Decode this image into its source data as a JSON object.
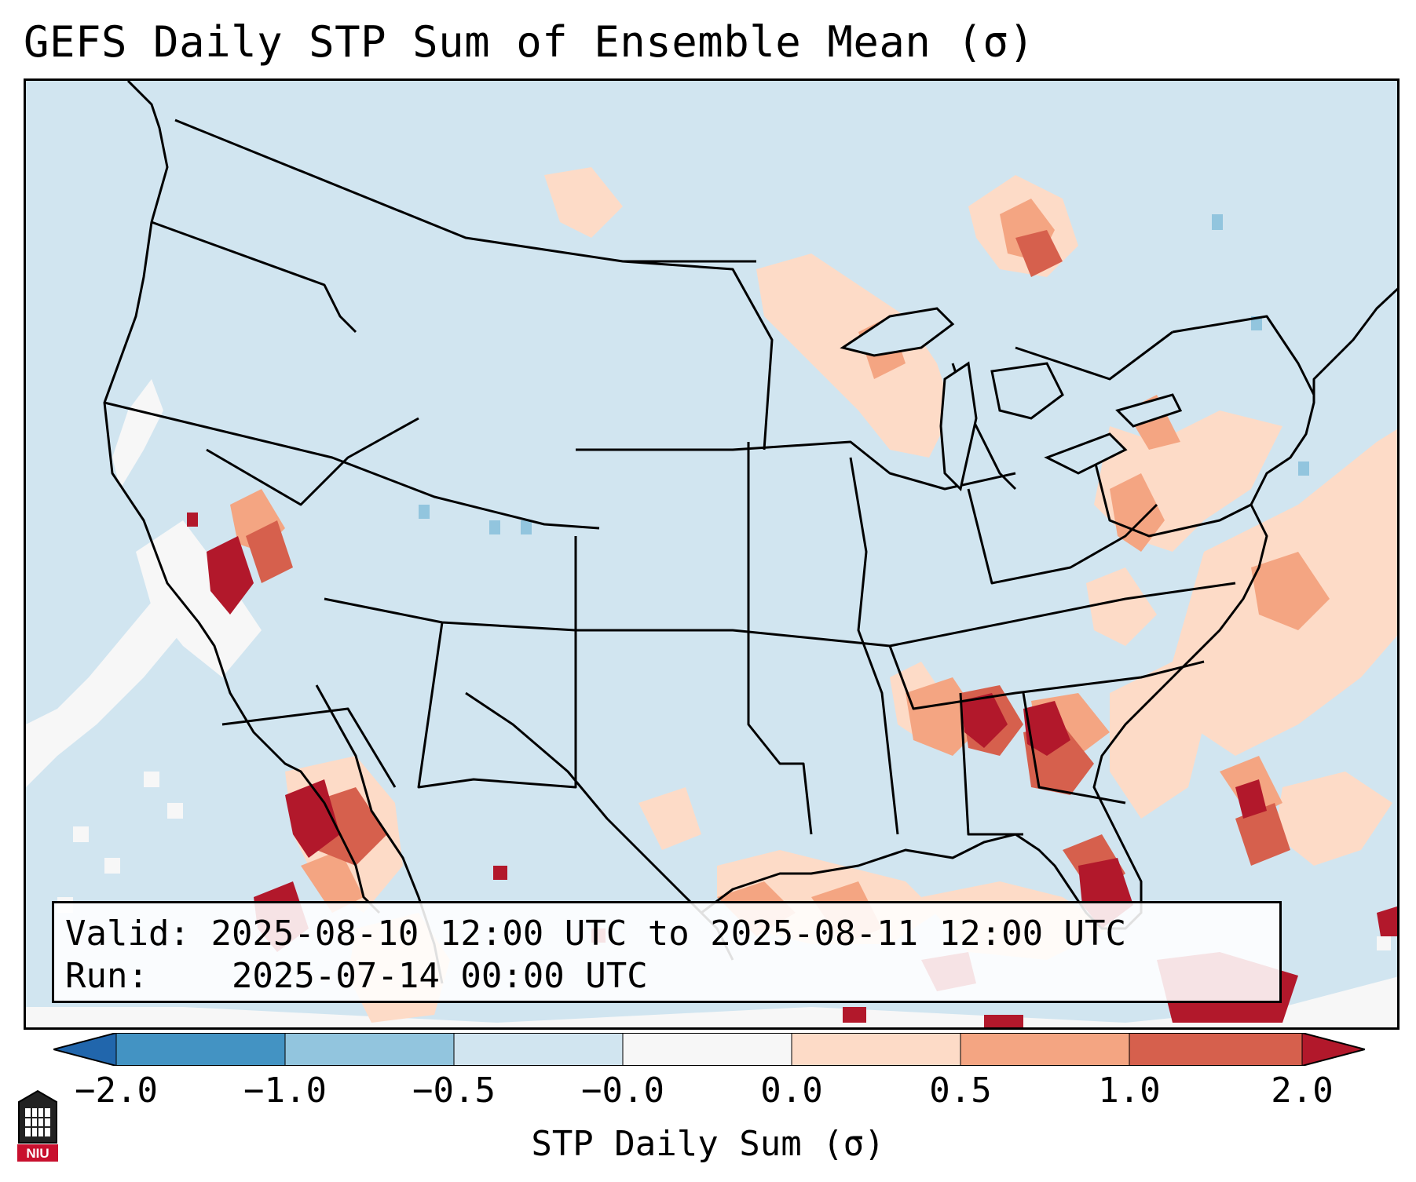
{
  "title": "GEFS Daily STP Sum of Ensemble Mean (σ)",
  "info": {
    "valid_label": "Valid:",
    "valid_value": "2025-08-10 12:00 UTC to 2025-08-11 12:00 UTC",
    "run_label": "Run:",
    "run_value": "2025-07-14 00:00 UTC"
  },
  "colorbar": {
    "label": "STP Daily Sum (σ)",
    "ticks": [
      "−2.0",
      "−1.0",
      "−0.5",
      "−0.0",
      "0.0",
      "0.5",
      "1.0",
      "2.0"
    ],
    "bins": [
      {
        "range": "< -2.0",
        "color": "#2166ac"
      },
      {
        "range": "-2.0 to -1.0",
        "color": "#4393c3"
      },
      {
        "range": "-1.0 to -0.5",
        "color": "#92c5de"
      },
      {
        "range": "-0.5 to -0.0",
        "color": "#d1e5f0"
      },
      {
        "range": "-0.0 to 0.0",
        "color": "#f7f7f7"
      },
      {
        "range": "0.0 to 0.5",
        "color": "#fddbc7"
      },
      {
        "range": "0.5 to 1.0",
        "color": "#f4a582"
      },
      {
        "range": "1.0 to 2.0",
        "color": "#d6604d"
      },
      {
        "range": "> 2.0",
        "color": "#b2182b"
      }
    ]
  },
  "map": {
    "region": "Continental United States",
    "background_color": "#d1e5f0",
    "anomaly_areas": [
      {
        "name": "Southeast US (Alabama / Georgia)",
        "level": "> 2.0"
      },
      {
        "name": "Gulf of Mexico / Florida",
        "level": "1.0 to 2.0"
      },
      {
        "name": "Great Lakes / Upper Midwest",
        "level": "0.5 to 1.0"
      },
      {
        "name": "Mid-Atlantic / Virginia",
        "level": "0.5 to 1.0"
      },
      {
        "name": "Nevada / Southern California",
        "level": "1.0 to 2.0"
      },
      {
        "name": "Northwest Mexico / Gulf of California",
        "level": "> 2.0"
      },
      {
        "name": "Western Atlantic",
        "level": "0.5 to 1.0"
      },
      {
        "name": "Eastern Pacific",
        "level": "-0.0 to 0.0"
      }
    ]
  },
  "logo": {
    "text": "NIU"
  }
}
